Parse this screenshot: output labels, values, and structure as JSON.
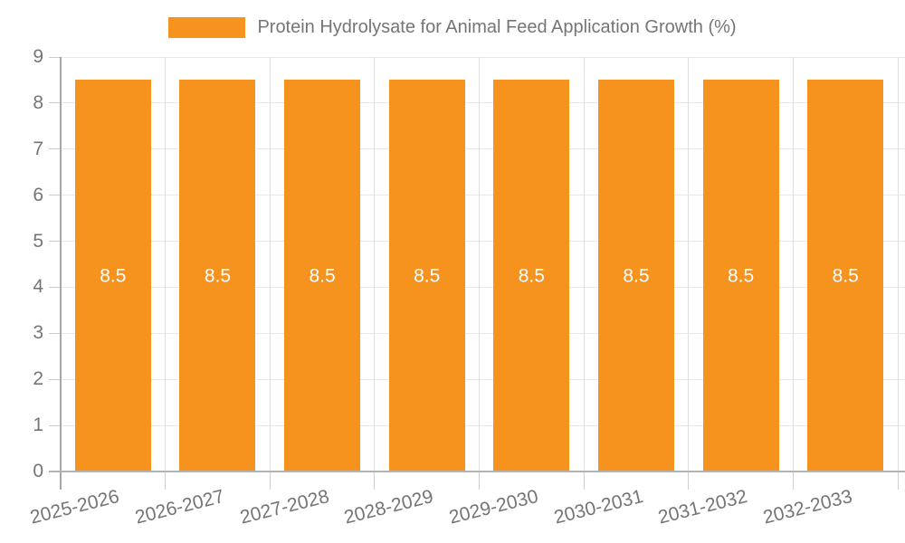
{
  "legend": {
    "label": "Protein Hydrolysate for Animal Feed Application Growth (%)"
  },
  "chart_data": {
    "type": "bar",
    "title": "Protein Hydrolysate for Animal Feed Application Growth (%)",
    "categories": [
      "2025-2026",
      "2026-2027",
      "2027-2028",
      "2028-2029",
      "2029-2030",
      "2030-2031",
      "2031-2032",
      "2032-2033"
    ],
    "values": [
      8.5,
      8.5,
      8.5,
      8.5,
      8.5,
      8.5,
      8.5,
      8.5
    ],
    "bar_labels": [
      "8.5",
      "8.5",
      "8.5",
      "8.5",
      "8.5",
      "8.5",
      "8.5",
      "8.5"
    ],
    "xlabel": "",
    "ylabel": "",
    "ylim": [
      0,
      9
    ],
    "yticks": [
      0,
      1,
      2,
      3,
      4,
      5,
      6,
      7,
      8,
      9
    ],
    "grid": true,
    "legend_position": "top-center",
    "bar_color": "#F6921E",
    "bar_label_color": "#FFFFFF",
    "axis_text_color": "#757575"
  }
}
